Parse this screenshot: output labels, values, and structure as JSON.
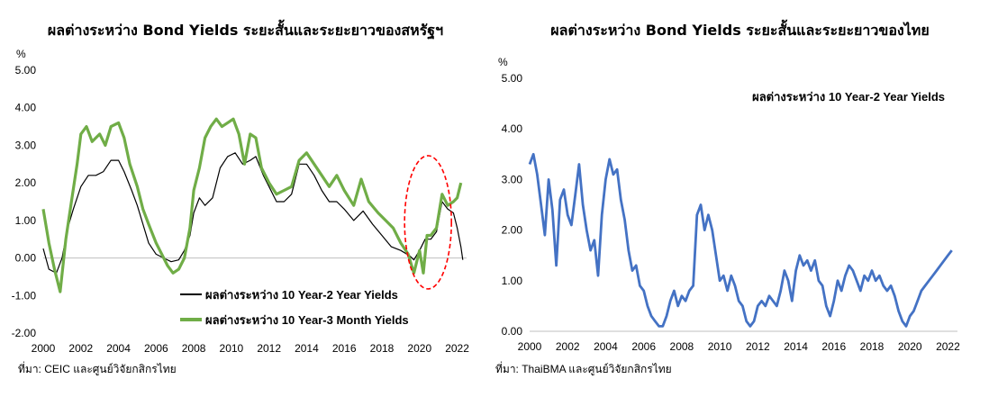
{
  "charts": {
    "us": {
      "title": "ผลต่างระหว่าง Bond Yields ระยะสั้นและระยะยาวของสหรัฐฯ",
      "source": "ที่มา: CEIC และศูนย์วิจัยกสิกรไทย",
      "unit": "%"
    },
    "th": {
      "title": "ผลต่างระหว่าง Bond Yields ระยะสั้นและระยะยาวของไทย",
      "source": "ที่มา: ThaiBMA และศูนย์วิจัยกสิกรไทย",
      "unit": "%",
      "annotation": "ผลต่างระหว่าง 10 Year-2 Year Yields"
    }
  },
  "chart_data": [
    {
      "type": "line",
      "title": "ผลต่างระหว่าง Bond Yields ระยะสั้นและระยะยาวของสหรัฐฯ",
      "ylabel": "%",
      "xlim": [
        2000,
        2022.5
      ],
      "ylim": [
        -2.0,
        5.0
      ],
      "y_ticks": [
        "5.00",
        "4.00",
        "3.00",
        "2.00",
        "1.00",
        "0.00",
        "-1.00",
        "-2.00"
      ],
      "x_ticks": [
        "2000",
        "2002",
        "2004",
        "2006",
        "2008",
        "2010",
        "2012",
        "2014",
        "2016",
        "2018",
        "2020",
        "2022"
      ],
      "legend_position": "bottom-right",
      "annotation": "red dashed ellipse highlighting 2019-2021",
      "series": [
        {
          "name": "ผลต่างระหว่าง 10 Year-2 Year Yields",
          "color": "#000000",
          "points": [
            [
              2000.0,
              0.25
            ],
            [
              2000.3,
              -0.3
            ],
            [
              2000.7,
              -0.4
            ],
            [
              2001.0,
              0.0
            ],
            [
              2001.3,
              0.8
            ],
            [
              2001.6,
              1.3
            ],
            [
              2002.0,
              1.9
            ],
            [
              2002.4,
              2.2
            ],
            [
              2002.8,
              2.2
            ],
            [
              2003.2,
              2.3
            ],
            [
              2003.6,
              2.6
            ],
            [
              2004.0,
              2.6
            ],
            [
              2004.3,
              2.3
            ],
            [
              2004.7,
              1.8
            ],
            [
              2005.0,
              1.4
            ],
            [
              2005.3,
              0.9
            ],
            [
              2005.6,
              0.4
            ],
            [
              2006.0,
              0.1
            ],
            [
              2006.4,
              0.0
            ],
            [
              2006.8,
              -0.1
            ],
            [
              2007.2,
              -0.05
            ],
            [
              2007.5,
              0.2
            ],
            [
              2007.8,
              0.6
            ],
            [
              2008.0,
              1.2
            ],
            [
              2008.3,
              1.6
            ],
            [
              2008.6,
              1.4
            ],
            [
              2009.0,
              1.6
            ],
            [
              2009.4,
              2.4
            ],
            [
              2009.8,
              2.7
            ],
            [
              2010.2,
              2.8
            ],
            [
              2010.6,
              2.5
            ],
            [
              2011.0,
              2.6
            ],
            [
              2011.3,
              2.7
            ],
            [
              2011.7,
              2.2
            ],
            [
              2012.0,
              1.9
            ],
            [
              2012.4,
              1.5
            ],
            [
              2012.8,
              1.5
            ],
            [
              2013.2,
              1.7
            ],
            [
              2013.6,
              2.5
            ],
            [
              2014.0,
              2.5
            ],
            [
              2014.4,
              2.2
            ],
            [
              2014.8,
              1.8
            ],
            [
              2015.2,
              1.5
            ],
            [
              2015.6,
              1.5
            ],
            [
              2016.0,
              1.3
            ],
            [
              2016.5,
              1.0
            ],
            [
              2017.0,
              1.25
            ],
            [
              2017.5,
              0.9
            ],
            [
              2018.0,
              0.6
            ],
            [
              2018.5,
              0.3
            ],
            [
              2019.0,
              0.2
            ],
            [
              2019.5,
              0.05
            ],
            [
              2019.7,
              -0.05
            ],
            [
              2020.0,
              0.2
            ],
            [
              2020.3,
              0.5
            ],
            [
              2020.6,
              0.5
            ],
            [
              2020.9,
              0.7
            ],
            [
              2021.2,
              1.5
            ],
            [
              2021.5,
              1.3
            ],
            [
              2021.8,
              1.2
            ],
            [
              2022.0,
              0.8
            ],
            [
              2022.2,
              0.3
            ],
            [
              2022.3,
              -0.05
            ]
          ]
        },
        {
          "name": "ผลต่างระหว่าง 10 Year-3 Month Yields",
          "color": "#70ad47",
          "points": [
            [
              2000.0,
              1.3
            ],
            [
              2000.3,
              0.4
            ],
            [
              2000.6,
              -0.3
            ],
            [
              2000.9,
              -0.9
            ],
            [
              2001.2,
              0.5
            ],
            [
              2001.5,
              1.5
            ],
            [
              2001.8,
              2.5
            ],
            [
              2002.0,
              3.3
            ],
            [
              2002.3,
              3.5
            ],
            [
              2002.6,
              3.1
            ],
            [
              2003.0,
              3.3
            ],
            [
              2003.3,
              3.0
            ],
            [
              2003.6,
              3.5
            ],
            [
              2004.0,
              3.6
            ],
            [
              2004.3,
              3.2
            ],
            [
              2004.6,
              2.5
            ],
            [
              2005.0,
              1.9
            ],
            [
              2005.3,
              1.3
            ],
            [
              2005.6,
              0.9
            ],
            [
              2006.0,
              0.4
            ],
            [
              2006.3,
              0.1
            ],
            [
              2006.6,
              -0.2
            ],
            [
              2006.9,
              -0.4
            ],
            [
              2007.2,
              -0.3
            ],
            [
              2007.5,
              0.0
            ],
            [
              2007.8,
              0.8
            ],
            [
              2008.0,
              1.8
            ],
            [
              2008.3,
              2.4
            ],
            [
              2008.6,
              3.2
            ],
            [
              2008.9,
              3.5
            ],
            [
              2009.2,
              3.7
            ],
            [
              2009.5,
              3.5
            ],
            [
              2009.8,
              3.6
            ],
            [
              2010.1,
              3.7
            ],
            [
              2010.4,
              3.3
            ],
            [
              2010.7,
              2.5
            ],
            [
              2011.0,
              3.3
            ],
            [
              2011.3,
              3.2
            ],
            [
              2011.6,
              2.4
            ],
            [
              2012.0,
              2.0
            ],
            [
              2012.4,
              1.7
            ],
            [
              2012.8,
              1.8
            ],
            [
              2013.2,
              1.9
            ],
            [
              2013.6,
              2.6
            ],
            [
              2014.0,
              2.8
            ],
            [
              2014.4,
              2.5
            ],
            [
              2014.8,
              2.2
            ],
            [
              2015.2,
              1.9
            ],
            [
              2015.6,
              2.2
            ],
            [
              2016.0,
              1.8
            ],
            [
              2016.5,
              1.4
            ],
            [
              2016.9,
              2.1
            ],
            [
              2017.3,
              1.5
            ],
            [
              2017.8,
              1.2
            ],
            [
              2018.2,
              1.0
            ],
            [
              2018.6,
              0.8
            ],
            [
              2019.0,
              0.4
            ],
            [
              2019.4,
              0.1
            ],
            [
              2019.7,
              -0.4
            ],
            [
              2020.0,
              0.2
            ],
            [
              2020.2,
              -0.4
            ],
            [
              2020.4,
              0.6
            ],
            [
              2020.6,
              0.6
            ],
            [
              2020.9,
              0.8
            ],
            [
              2021.2,
              1.7
            ],
            [
              2021.5,
              1.4
            ],
            [
              2021.8,
              1.5
            ],
            [
              2022.0,
              1.6
            ],
            [
              2022.2,
              2.0
            ]
          ]
        }
      ]
    },
    {
      "type": "line",
      "title": "ผลต่างระหว่าง Bond Yields ระยะสั้นและระยะยาวของไทย",
      "ylabel": "%",
      "xlim": [
        2000,
        2022.5
      ],
      "ylim": [
        0.0,
        5.0
      ],
      "y_ticks": [
        "5.00",
        "4.00",
        "3.00",
        "2.00",
        "1.00",
        "0.00"
      ],
      "x_ticks": [
        "2000",
        "2002",
        "2004",
        "2006",
        "2008",
        "2010",
        "2012",
        "2014",
        "2016",
        "2018",
        "2020",
        "2022"
      ],
      "series": [
        {
          "name": "ผลต่างระหว่าง 10 Year-2 Year Yields",
          "color": "#4472c4",
          "points": [
            [
              2000.0,
              3.3
            ],
            [
              2000.2,
              3.5
            ],
            [
              2000.4,
              3.1
            ],
            [
              2000.6,
              2.5
            ],
            [
              2000.8,
              1.9
            ],
            [
              2001.0,
              3.0
            ],
            [
              2001.2,
              2.4
            ],
            [
              2001.4,
              1.3
            ],
            [
              2001.6,
              2.6
            ],
            [
              2001.8,
              2.8
            ],
            [
              2002.0,
              2.3
            ],
            [
              2002.2,
              2.1
            ],
            [
              2002.4,
              2.7
            ],
            [
              2002.6,
              3.3
            ],
            [
              2002.8,
              2.5
            ],
            [
              2003.0,
              2.0
            ],
            [
              2003.2,
              1.6
            ],
            [
              2003.4,
              1.8
            ],
            [
              2003.6,
              1.1
            ],
            [
              2003.8,
              2.3
            ],
            [
              2004.0,
              3.0
            ],
            [
              2004.2,
              3.4
            ],
            [
              2004.4,
              3.1
            ],
            [
              2004.6,
              3.2
            ],
            [
              2004.8,
              2.6
            ],
            [
              2005.0,
              2.2
            ],
            [
              2005.2,
              1.6
            ],
            [
              2005.4,
              1.2
            ],
            [
              2005.6,
              1.3
            ],
            [
              2005.8,
              0.9
            ],
            [
              2006.0,
              0.8
            ],
            [
              2006.2,
              0.5
            ],
            [
              2006.4,
              0.3
            ],
            [
              2006.6,
              0.2
            ],
            [
              2006.8,
              0.1
            ],
            [
              2007.0,
              0.1
            ],
            [
              2007.2,
              0.3
            ],
            [
              2007.4,
              0.6
            ],
            [
              2007.6,
              0.8
            ],
            [
              2007.8,
              0.5
            ],
            [
              2008.0,
              0.7
            ],
            [
              2008.2,
              0.6
            ],
            [
              2008.4,
              0.8
            ],
            [
              2008.6,
              0.9
            ],
            [
              2008.8,
              2.3
            ],
            [
              2009.0,
              2.5
            ],
            [
              2009.2,
              2.0
            ],
            [
              2009.4,
              2.3
            ],
            [
              2009.6,
              2.0
            ],
            [
              2009.8,
              1.5
            ],
            [
              2010.0,
              1.0
            ],
            [
              2010.2,
              1.1
            ],
            [
              2010.4,
              0.8
            ],
            [
              2010.6,
              1.1
            ],
            [
              2010.8,
              0.9
            ],
            [
              2011.0,
              0.6
            ],
            [
              2011.2,
              0.5
            ],
            [
              2011.4,
              0.2
            ],
            [
              2011.6,
              0.1
            ],
            [
              2011.8,
              0.2
            ],
            [
              2012.0,
              0.5
            ],
            [
              2012.2,
              0.6
            ],
            [
              2012.4,
              0.5
            ],
            [
              2012.6,
              0.7
            ],
            [
              2012.8,
              0.6
            ],
            [
              2013.0,
              0.5
            ],
            [
              2013.2,
              0.8
            ],
            [
              2013.4,
              1.2
            ],
            [
              2013.6,
              1.0
            ],
            [
              2013.8,
              0.6
            ],
            [
              2014.0,
              1.2
            ],
            [
              2014.2,
              1.5
            ],
            [
              2014.4,
              1.3
            ],
            [
              2014.6,
              1.4
            ],
            [
              2014.8,
              1.2
            ],
            [
              2015.0,
              1.4
            ],
            [
              2015.2,
              1.0
            ],
            [
              2015.4,
              0.9
            ],
            [
              2015.6,
              0.5
            ],
            [
              2015.8,
              0.3
            ],
            [
              2016.0,
              0.6
            ],
            [
              2016.2,
              1.0
            ],
            [
              2016.4,
              0.8
            ],
            [
              2016.6,
              1.1
            ],
            [
              2016.8,
              1.3
            ],
            [
              2017.0,
              1.2
            ],
            [
              2017.2,
              1.0
            ],
            [
              2017.4,
              0.8
            ],
            [
              2017.6,
              1.1
            ],
            [
              2017.8,
              1.0
            ],
            [
              2018.0,
              1.2
            ],
            [
              2018.2,
              1.0
            ],
            [
              2018.4,
              1.1
            ],
            [
              2018.6,
              0.9
            ],
            [
              2018.8,
              0.8
            ],
            [
              2019.0,
              0.9
            ],
            [
              2019.2,
              0.7
            ],
            [
              2019.4,
              0.4
            ],
            [
              2019.6,
              0.2
            ],
            [
              2019.8,
              0.1
            ],
            [
              2020.0,
              0.3
            ],
            [
              2020.2,
              0.4
            ],
            [
              2020.4,
              0.6
            ],
            [
              2020.6,
              0.8
            ],
            [
              2020.8,
              0.9
            ],
            [
              2021.0,
              1.0
            ],
            [
              2021.2,
              1.1
            ],
            [
              2021.4,
              1.2
            ],
            [
              2021.6,
              1.3
            ],
            [
              2021.8,
              1.4
            ],
            [
              2022.0,
              1.5
            ],
            [
              2022.2,
              1.6
            ]
          ]
        }
      ]
    }
  ]
}
